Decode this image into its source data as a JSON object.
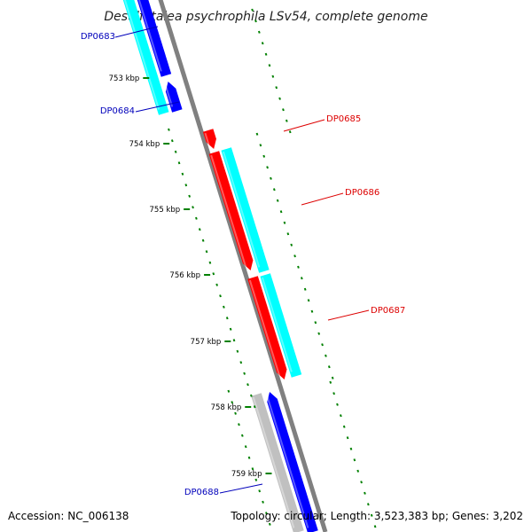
{
  "title": "Desulfotalea psychrophila LSv54, complete genome",
  "footer": {
    "accession": "Accession: NC_006138",
    "summary": "Topology: circular; Length: 3,523,383 bp; Genes: 3,202"
  },
  "colors": {
    "forward_cds": "#ff0000",
    "reverse_cds": "#0000ff",
    "cyan_track": "#00ffff",
    "backbone": "#808080",
    "ticks": "#008000",
    "label_blue": "#0000bb",
    "label_red": "#dd0000"
  },
  "tick_labels": [
    "753 kbp",
    "754 kbp",
    "755 kbp",
    "756 kbp",
    "757 kbp",
    "758 kbp",
    "759 kbp"
  ],
  "genes": [
    {
      "id": "DP0683",
      "strand": "reverse"
    },
    {
      "id": "DP0684",
      "strand": "reverse"
    },
    {
      "id": "DP0685",
      "strand": "forward"
    },
    {
      "id": "DP0686",
      "strand": "forward"
    },
    {
      "id": "DP0687",
      "strand": "forward"
    },
    {
      "id": "DP0688",
      "strand": "reverse"
    }
  ]
}
